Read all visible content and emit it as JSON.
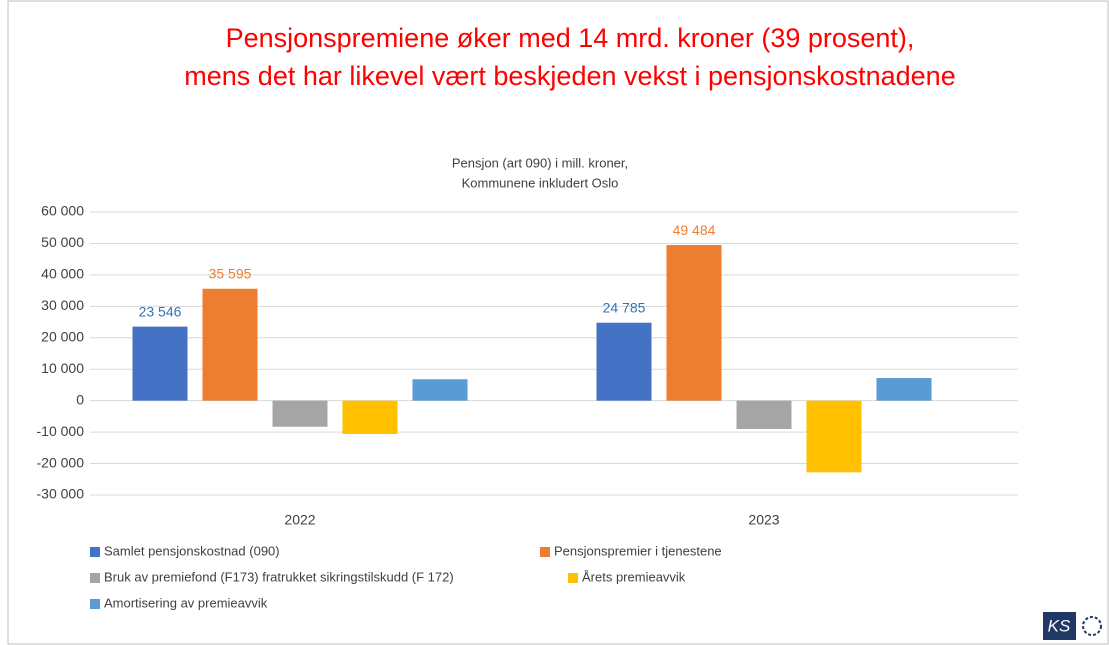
{
  "chart_data": {
    "type": "bar",
    "title": [
      "Pensjonspremiene øker med 14 mrd. kroner (39 prosent),",
      "mens det har likevel vært beskjeden vekst i pensjonskostnadene"
    ],
    "subtitle": [
      "Pensjon (art 090) i mill. kroner,",
      "Kommunene inkludert Oslo"
    ],
    "categories": [
      "2022",
      "2023"
    ],
    "series": [
      {
        "name": "Samlet pensjonskostnad (090)",
        "color": "#4472c4",
        "values": [
          23546,
          24785
        ],
        "value_labels": [
          "23 546",
          "24 785"
        ]
      },
      {
        "name": "Pensjonspremier i tjenestene",
        "color": "#ed7d31",
        "values": [
          35595,
          49484
        ],
        "value_labels": [
          "35 595",
          "49 484"
        ]
      },
      {
        "name": "Bruk av premiefond (F173) fratrukket sikringstilskudd (F 172)",
        "color": "#a5a5a5",
        "values": [
          -8300,
          -9000
        ]
      },
      {
        "name": "Årets premieavvik",
        "color": "#ffc000",
        "values": [
          -10600,
          -22800
        ]
      },
      {
        "name": "Amortisering av premieavvik",
        "color": "#5b9bd5",
        "values": [
          6800,
          7200
        ]
      }
    ],
    "ylim": [
      -30000,
      60000
    ],
    "yticks": [
      {
        "value": -30000,
        "label": "-30 000"
      },
      {
        "value": -20000,
        "label": "-20 000"
      },
      {
        "value": -10000,
        "label": "-10 000"
      },
      0,
      {
        "value": 10000,
        "label": "10 000"
      },
      {
        "value": 20000,
        "label": "20 000"
      },
      {
        "value": 30000,
        "label": "30 000"
      },
      {
        "value": 40000,
        "label": "40 000"
      },
      {
        "value": 50000,
        "label": "50 000"
      },
      {
        "value": 60000,
        "label": "60 000"
      }
    ],
    "grid": true
  }
}
